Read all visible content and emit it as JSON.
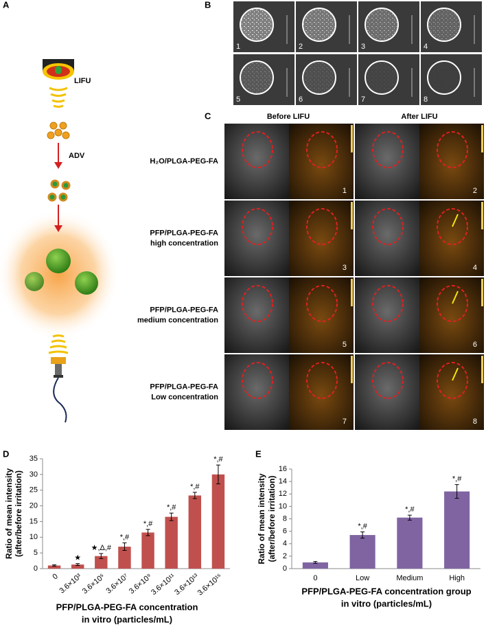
{
  "panel_labels": [
    "A",
    "B",
    "C",
    "D",
    "E"
  ],
  "panel_a": {
    "labels": [
      "LIFU",
      "ADV"
    ]
  },
  "panel_b": {
    "image_labels": [
      "1",
      "2",
      "3",
      "4",
      "5",
      "6",
      "7",
      "8"
    ]
  },
  "panel_c": {
    "columns": [
      "Before LIFU",
      "After LIFU"
    ],
    "rows": [
      {
        "label_lines": [
          "H₂O/PLGA-PEG-FA"
        ],
        "image_labels": [
          "1",
          "2"
        ]
      },
      {
        "label_lines": [
          "PFP/PLGA-PEG-FA",
          "high concentration"
        ],
        "image_labels": [
          "3",
          "4"
        ]
      },
      {
        "label_lines": [
          "PFP/PLGA-PEG-FA",
          "medium concentration"
        ],
        "image_labels": [
          "5",
          "6"
        ]
      },
      {
        "label_lines": [
          "PFP/PLGA-PEG-FA",
          "Low concentration"
        ],
        "image_labels": [
          "7",
          "8"
        ]
      }
    ]
  },
  "chart_data": [
    {
      "type": "bar",
      "color": "#c0504d",
      "categories": [
        "0",
        "3.6×10³",
        "3.6×10⁵",
        "3.6×10⁷",
        "3.6×10⁹",
        "3.6×10¹¹",
        "3.6×10¹³",
        "3.6×10¹⁵"
      ],
      "values": [
        1,
        1.3,
        4,
        7,
        11.5,
        16.5,
        23.3,
        30
      ],
      "errors": [
        0.2,
        0.3,
        0.8,
        1.2,
        1,
        1.2,
        1,
        3
      ],
      "annotations": [
        null,
        "★",
        "★,Δ,#",
        "*,#",
        "*,#",
        "*,#",
        "*,#",
        "*,#"
      ],
      "ylim": [
        0,
        35
      ],
      "yticks": [
        0,
        5,
        10,
        15,
        20,
        25,
        30,
        35
      ],
      "ylabel": [
        "Ratio of mean intensity",
        "(after/before irritation)"
      ],
      "xlabel": [
        "PFP/PLGA-PEG-FA concentration",
        "in vitro (particles/mL)"
      ],
      "rotate_x_labels": true
    },
    {
      "type": "bar",
      "color": "#8064a2",
      "categories": [
        "0",
        "Low",
        "Medium",
        "High"
      ],
      "values": [
        1,
        5.4,
        8.2,
        12.4
      ],
      "errors": [
        0.15,
        0.5,
        0.4,
        1.1
      ],
      "annotations": [
        null,
        "*,#",
        "*,#",
        "*,#"
      ],
      "ylim": [
        0,
        16
      ],
      "yticks": [
        0,
        2,
        4,
        6,
        8,
        10,
        12,
        14,
        16
      ],
      "ylabel": [
        "Ratio of mean intensity",
        "(after/before irritation)"
      ],
      "xlabel": [
        "PFP/PLGA-PEG-FA concentration group",
        "in vitro (particles/mL)"
      ],
      "rotate_x_labels": false
    }
  ]
}
